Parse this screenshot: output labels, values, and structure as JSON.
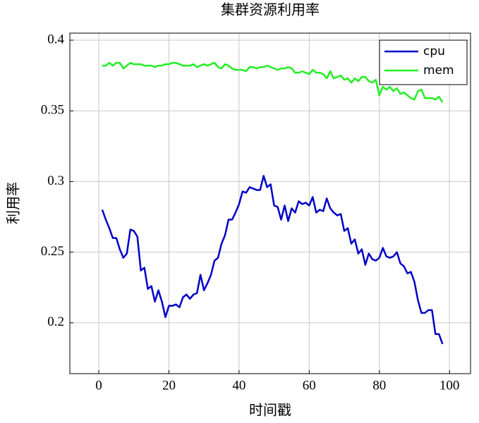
{
  "chart_data": {
    "type": "line",
    "title": "集群资源利用率",
    "x_label": "时间戳",
    "y_label": "利用率",
    "x": [
      1,
      2,
      3,
      4,
      5,
      6,
      7,
      8,
      9,
      10,
      11,
      12,
      13,
      14,
      15,
      16,
      17,
      18,
      19,
      20,
      21,
      22,
      23,
      24,
      25,
      26,
      27,
      28,
      29,
      30,
      31,
      32,
      33,
      34,
      35,
      36,
      37,
      38,
      39,
      40,
      41,
      42,
      43,
      44,
      45,
      46,
      47,
      48,
      49,
      50,
      51,
      52,
      53,
      54,
      55,
      56,
      57,
      58,
      59,
      60,
      61,
      62,
      63,
      64,
      65,
      66,
      67,
      68,
      69,
      70,
      71,
      72,
      73,
      74,
      75,
      76,
      77,
      78,
      79,
      80,
      81,
      82,
      83,
      84,
      85,
      86,
      87,
      88,
      89,
      90,
      91,
      92,
      93,
      94,
      95,
      96,
      97,
      98
    ],
    "series": [
      {
        "name": "cpu",
        "color": "#0000c8",
        "values": [
          0.28,
          0.273,
          0.267,
          0.26,
          0.26,
          0.252,
          0.246,
          0.249,
          0.266,
          0.265,
          0.261,
          0.237,
          0.239,
          0.224,
          0.226,
          0.215,
          0.223,
          0.215,
          0.204,
          0.212,
          0.212,
          0.213,
          0.211,
          0.218,
          0.22,
          0.217,
          0.22,
          0.221,
          0.234,
          0.223,
          0.228,
          0.234,
          0.244,
          0.246,
          0.256,
          0.262,
          0.273,
          0.273,
          0.278,
          0.284,
          0.293,
          0.292,
          0.296,
          0.295,
          0.294,
          0.294,
          0.304,
          0.296,
          0.298,
          0.283,
          0.282,
          0.273,
          0.283,
          0.272,
          0.281,
          0.278,
          0.286,
          0.284,
          0.285,
          0.283,
          0.289,
          0.278,
          0.28,
          0.279,
          0.288,
          0.281,
          0.278,
          0.276,
          0.277,
          0.265,
          0.267,
          0.256,
          0.259,
          0.249,
          0.252,
          0.241,
          0.249,
          0.245,
          0.244,
          0.246,
          0.253,
          0.247,
          0.246,
          0.247,
          0.25,
          0.242,
          0.24,
          0.235,
          0.236,
          0.229,
          0.216,
          0.207,
          0.207,
          0.209,
          0.209,
          0.192,
          0.192,
          0.185
        ]
      },
      {
        "name": "mem",
        "color": "#22ee22",
        "values": [
          0.382,
          0.382,
          0.384,
          0.382,
          0.384,
          0.384,
          0.38,
          0.382,
          0.384,
          0.383,
          0.383,
          0.383,
          0.382,
          0.382,
          0.382,
          0.381,
          0.382,
          0.382,
          0.383,
          0.383,
          0.384,
          0.384,
          0.383,
          0.382,
          0.382,
          0.382,
          0.383,
          0.381,
          0.382,
          0.383,
          0.382,
          0.383,
          0.384,
          0.381,
          0.38,
          0.383,
          0.382,
          0.38,
          0.379,
          0.379,
          0.379,
          0.378,
          0.381,
          0.381,
          0.38,
          0.381,
          0.381,
          0.382,
          0.381,
          0.38,
          0.379,
          0.38,
          0.38,
          0.381,
          0.38,
          0.377,
          0.377,
          0.378,
          0.377,
          0.376,
          0.379,
          0.377,
          0.377,
          0.376,
          0.373,
          0.378,
          0.373,
          0.374,
          0.375,
          0.372,
          0.373,
          0.37,
          0.373,
          0.371,
          0.374,
          0.374,
          0.371,
          0.37,
          0.372,
          0.361,
          0.367,
          0.365,
          0.367,
          0.364,
          0.366,
          0.362,
          0.363,
          0.361,
          0.359,
          0.358,
          0.364,
          0.365,
          0.359,
          0.359,
          0.359,
          0.358,
          0.36,
          0.356
        ]
      }
    ],
    "xlim": [
      -8.25,
      106
    ],
    "ylim": [
      0.164,
      0.405
    ],
    "xticks": [
      0,
      20,
      40,
      60,
      80,
      100
    ],
    "yticks": [
      0.2,
      0.25,
      0.3,
      0.35,
      0.4
    ],
    "grid": true,
    "legend": "top-right"
  }
}
